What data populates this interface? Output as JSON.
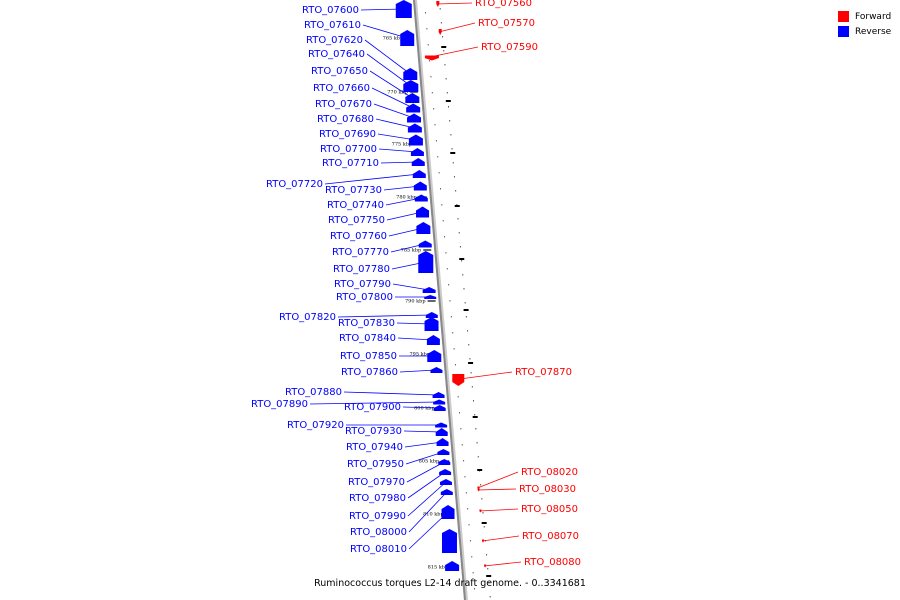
{
  "legend": [
    {
      "label": "Forward",
      "color": "#ff0000"
    },
    {
      "label": "Reverse",
      "color": "#0000ff"
    }
  ],
  "caption": "Ruminococcus torques L2-14 draft genome. - 0..3341681",
  "colors": {
    "forward": "#ff0000",
    "reverse": "#0000ff",
    "backbone": "#999999"
  },
  "ticks": [
    "765 kbp",
    "770 kbp",
    "775 kbp",
    "780 kbp",
    "785 kbp",
    "790 kbp",
    "795 kbp",
    "800 kbp",
    "805 kbp",
    "810 kbp",
    "815 kbp"
  ],
  "genes": [
    {
      "name": "RTO_07560",
      "strand": "+"
    },
    {
      "name": "RTO_07570",
      "strand": "+"
    },
    {
      "name": "RTO_07590",
      "strand": "+"
    },
    {
      "name": "RTO_07600",
      "strand": "-"
    },
    {
      "name": "RTO_07610",
      "strand": "-"
    },
    {
      "name": "RTO_07620",
      "strand": "-"
    },
    {
      "name": "RTO_07640",
      "strand": "-"
    },
    {
      "name": "RTO_07650",
      "strand": "-"
    },
    {
      "name": "RTO_07660",
      "strand": "-"
    },
    {
      "name": "RTO_07670",
      "strand": "-"
    },
    {
      "name": "RTO_07680",
      "strand": "-"
    },
    {
      "name": "RTO_07690",
      "strand": "-"
    },
    {
      "name": "RTO_07700",
      "strand": "-"
    },
    {
      "name": "RTO_07710",
      "strand": "-"
    },
    {
      "name": "RTO_07720",
      "strand": "-"
    },
    {
      "name": "RTO_07730",
      "strand": "-"
    },
    {
      "name": "RTO_07740",
      "strand": "-"
    },
    {
      "name": "RTO_07750",
      "strand": "-"
    },
    {
      "name": "RTO_07760",
      "strand": "-"
    },
    {
      "name": "RTO_07770",
      "strand": "-"
    },
    {
      "name": "RTO_07780",
      "strand": "-"
    },
    {
      "name": "RTO_07790",
      "strand": "-"
    },
    {
      "name": "RTO_07800",
      "strand": "-"
    },
    {
      "name": "RTO_07820",
      "strand": "-"
    },
    {
      "name": "RTO_07830",
      "strand": "-"
    },
    {
      "name": "RTO_07840",
      "strand": "-"
    },
    {
      "name": "RTO_07850",
      "strand": "-"
    },
    {
      "name": "RTO_07860",
      "strand": "-"
    },
    {
      "name": "RTO_07870",
      "strand": "+"
    },
    {
      "name": "RTO_07880",
      "strand": "-"
    },
    {
      "name": "RTO_07890",
      "strand": "-"
    },
    {
      "name": "RTO_07900",
      "strand": "-"
    },
    {
      "name": "RTO_07920",
      "strand": "-"
    },
    {
      "name": "RTO_07930",
      "strand": "-"
    },
    {
      "name": "RTO_07940",
      "strand": "-"
    },
    {
      "name": "RTO_07950",
      "strand": "-"
    },
    {
      "name": "RTO_07970",
      "strand": "-"
    },
    {
      "name": "RTO_07980",
      "strand": "-"
    },
    {
      "name": "RTO_07990",
      "strand": "-"
    },
    {
      "name": "RTO_08000",
      "strand": "-"
    },
    {
      "name": "RTO_08010",
      "strand": "-"
    },
    {
      "name": "RTO_08020",
      "strand": "+"
    },
    {
      "name": "RTO_08030",
      "strand": "+"
    },
    {
      "name": "RTO_08050",
      "strand": "+"
    },
    {
      "name": "RTO_08070",
      "strand": "+"
    },
    {
      "name": "RTO_08080",
      "strand": "+"
    }
  ]
}
